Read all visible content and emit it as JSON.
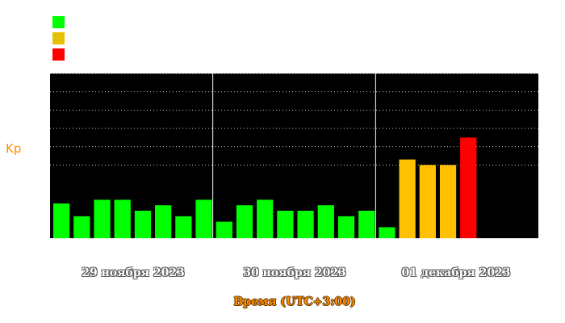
{
  "colors": {
    "background": "#000000",
    "low": "#00ff00",
    "mid": "#ffc000",
    "high": "#ff0000",
    "grid": "#ffffff",
    "label_orange": "#ff8c00"
  },
  "legend": [
    {
      "color": "#00ff00"
    },
    {
      "color": "#e5c000"
    },
    {
      "color": "#ff0000"
    }
  ],
  "chart_data": {
    "type": "bar",
    "ylabel": "Kp",
    "xlabel": "Время (UTC+3:00)",
    "ylim": [
      0,
      9
    ],
    "grid": true,
    "days": [
      "29 ноября 2023",
      "30 ноября 2023",
      "01 декабря 2023"
    ],
    "values": [
      1.9,
      1.2,
      2.1,
      2.1,
      1.5,
      1.8,
      1.2,
      2.1,
      0.9,
      1.8,
      2.1,
      1.5,
      1.5,
      1.8,
      1.2,
      1.5,
      0.6,
      4.3,
      4.0,
      4.0,
      5.5,
      null,
      null,
      null
    ],
    "levels": [
      "low",
      "low",
      "low",
      "low",
      "low",
      "low",
      "low",
      "low",
      "low",
      "low",
      "low",
      "low",
      "low",
      "low",
      "low",
      "low",
      "low",
      "mid",
      "mid",
      "mid",
      "high",
      null,
      null,
      null
    ]
  }
}
